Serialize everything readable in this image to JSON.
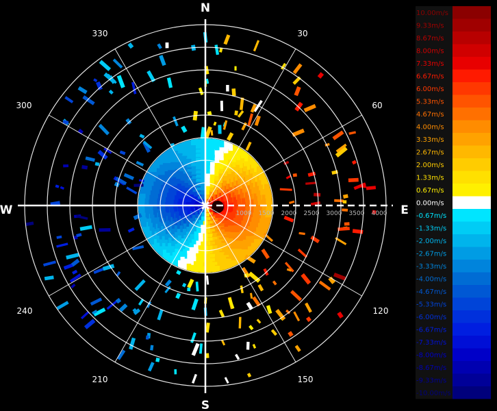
{
  "compass": {
    "north": "N",
    "east": "E",
    "south": "S",
    "west": "W"
  },
  "azimuth_labels": [
    "30",
    "60",
    "120",
    "150",
    "210",
    "240",
    "300",
    "330"
  ],
  "range_labels": [
    "1000",
    "1500",
    "2000",
    "2500",
    "3000",
    "3500",
    "4000"
  ],
  "legend": {
    "entries": [
      {
        "label": "10.00m/s",
        "color": "#8b0000"
      },
      {
        "label": "9.33m/s",
        "color": "#a00000"
      },
      {
        "label": "8.67m/s",
        "color": "#b80000"
      },
      {
        "label": "8.00m/s",
        "color": "#d00000"
      },
      {
        "label": "7.33m/s",
        "color": "#e80000"
      },
      {
        "label": "6.67m/s",
        "color": "#ff1a00"
      },
      {
        "label": "6.00m/s",
        "color": "#ff3800"
      },
      {
        "label": "5.33m/s",
        "color": "#ff5400"
      },
      {
        "label": "4.67m/s",
        "color": "#ff7000"
      },
      {
        "label": "4.00m/s",
        "color": "#ff8c00"
      },
      {
        "label": "3.33m/s",
        "color": "#ffa200"
      },
      {
        "label": "2.67m/s",
        "color": "#ffb800"
      },
      {
        "label": "2.00m/s",
        "color": "#ffcc00"
      },
      {
        "label": "1.33m/s",
        "color": "#ffe000"
      },
      {
        "label": "0.67m/s",
        "color": "#fff000"
      },
      {
        "label": "0.00m/s",
        "color": "#ffffff"
      },
      {
        "label": "-0.67m/s",
        "color": "#00e5ff"
      },
      {
        "label": "-1.33m/s",
        "color": "#00ccf5"
      },
      {
        "label": "-2.00m/s",
        "color": "#00b4ec"
      },
      {
        "label": "-2.67m/s",
        "color": "#009ce4"
      },
      {
        "label": "-3.33m/s",
        "color": "#0084dc"
      },
      {
        "label": "-4.00m/s",
        "color": "#006cd4"
      },
      {
        "label": "-4.67m/s",
        "color": "#0058d4"
      },
      {
        "label": "-5.33m/s",
        "color": "#0044d8"
      },
      {
        "label": "-6.00m/s",
        "color": "#0030dc"
      },
      {
        "label": "-6.67m/s",
        "color": "#001ee0"
      },
      {
        "label": "-7.33m/s",
        "color": "#000fd6"
      },
      {
        "label": "-8.00m/s",
        "color": "#0000c8"
      },
      {
        "label": "-8.67m/s",
        "color": "#0000b0"
      },
      {
        "label": "-9.33m/s",
        "color": "#000098"
      },
      {
        "label": "-10.00m/s",
        "color": "#00007c"
      }
    ]
  },
  "colors": {
    "background": "#000000",
    "grid": "#ffffff",
    "approach": "#0a2cff",
    "recede": "#e01000"
  }
}
